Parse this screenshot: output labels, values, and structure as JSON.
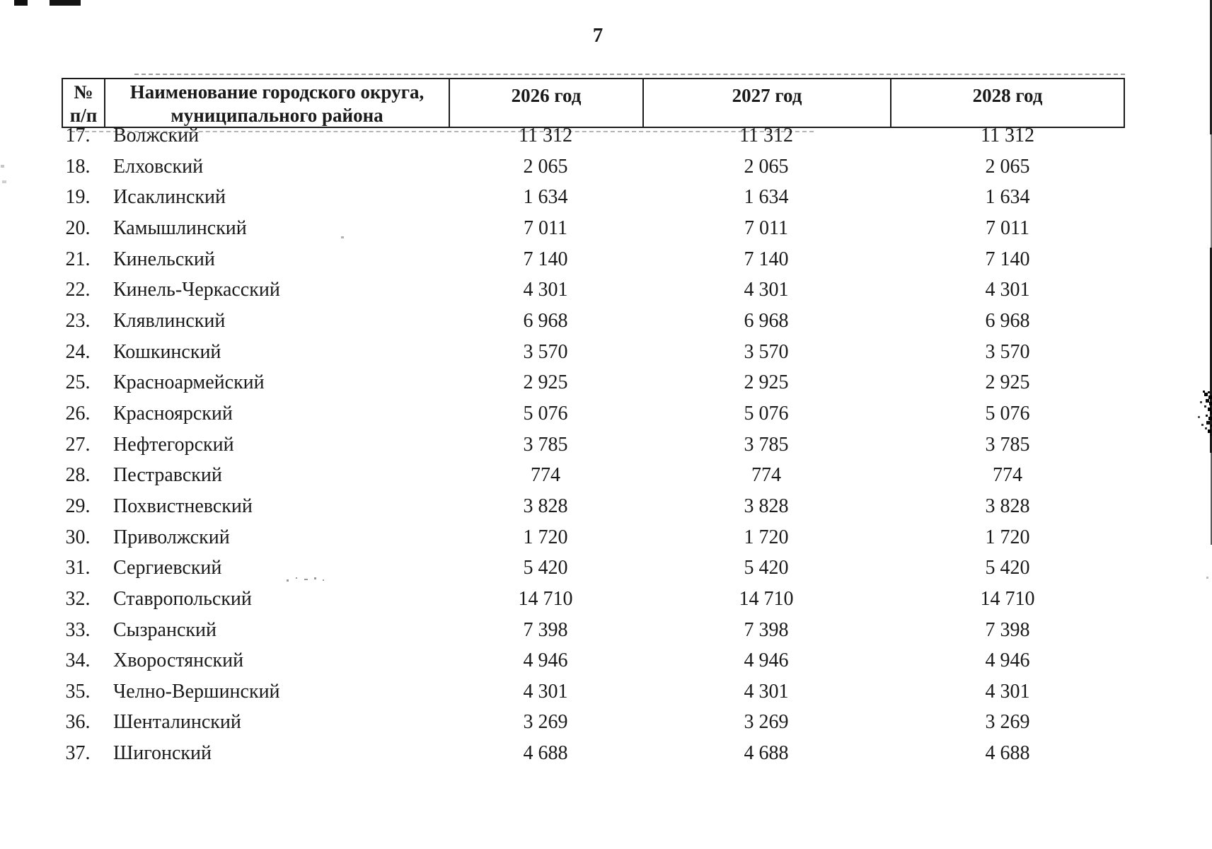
{
  "page": {
    "number": "7"
  },
  "table": {
    "header": {
      "num_line1": "№",
      "num_line2": "п/п",
      "name_line1": "Наименование городского округа,",
      "name_line2": "муниципального района",
      "year_2026": "2026 год",
      "year_2027": "2027 год",
      "year_2028": "2028 год"
    },
    "rows": [
      {
        "num": "17.",
        "name": "Волжский",
        "values": [
          "11 312",
          "11 312",
          "11 312"
        ]
      },
      {
        "num": "18.",
        "name": "Елховский",
        "values": [
          "2 065",
          "2 065",
          "2 065"
        ]
      },
      {
        "num": "19.",
        "name": "Исаклинский",
        "values": [
          "1 634",
          "1 634",
          "1 634"
        ]
      },
      {
        "num": "20.",
        "name": "Камышлинский",
        "values": [
          "7 011",
          "7 011",
          "7 011"
        ]
      },
      {
        "num": "21.",
        "name": "Кинельский",
        "values": [
          "7 140",
          "7 140",
          "7 140"
        ]
      },
      {
        "num": "22.",
        "name": "Кинель-Черкасский",
        "values": [
          "4 301",
          "4 301",
          "4 301"
        ]
      },
      {
        "num": "23.",
        "name": "Клявлинский",
        "values": [
          "6 968",
          "6 968",
          "6 968"
        ]
      },
      {
        "num": "24.",
        "name": "Кошкинский",
        "values": [
          "3 570",
          "3 570",
          "3 570"
        ]
      },
      {
        "num": "25.",
        "name": "Красноармейский",
        "values": [
          "2 925",
          "2 925",
          "2 925"
        ]
      },
      {
        "num": "26.",
        "name": "Красноярский",
        "values": [
          "5 076",
          "5 076",
          "5 076"
        ]
      },
      {
        "num": "27.",
        "name": "Нефтегорский",
        "values": [
          "3 785",
          "3 785",
          "3 785"
        ]
      },
      {
        "num": "28.",
        "name": "Пестравский",
        "values": [
          "774",
          "774",
          "774"
        ]
      },
      {
        "num": "29.",
        "name": "Похвистневский",
        "values": [
          "3 828",
          "3 828",
          "3 828"
        ]
      },
      {
        "num": "30.",
        "name": "Приволжский",
        "values": [
          "1 720",
          "1 720",
          "1 720"
        ]
      },
      {
        "num": "31.",
        "name": "Сергиевский",
        "values": [
          "5 420",
          "5 420",
          "5 420"
        ]
      },
      {
        "num": "32.",
        "name": "Ставропольский",
        "values": [
          "14 710",
          "14 710",
          "14 710"
        ]
      },
      {
        "num": "33.",
        "name": "Сызранский",
        "values": [
          "7 398",
          "7 398",
          "7 398"
        ]
      },
      {
        "num": "34.",
        "name": "Хворостянский",
        "values": [
          "4 946",
          "4 946",
          "4 946"
        ]
      },
      {
        "num": "35.",
        "name": "Челно-Вершинский",
        "values": [
          "4 301",
          "4 301",
          "4 301"
        ]
      },
      {
        "num": "36.",
        "name": "Шенталинский",
        "values": [
          "3 269",
          "3 269",
          "3 269"
        ]
      },
      {
        "num": "37.",
        "name": "Шигонский",
        "values": [
          "4 688",
          "4 688",
          "4 688"
        ]
      }
    ]
  }
}
